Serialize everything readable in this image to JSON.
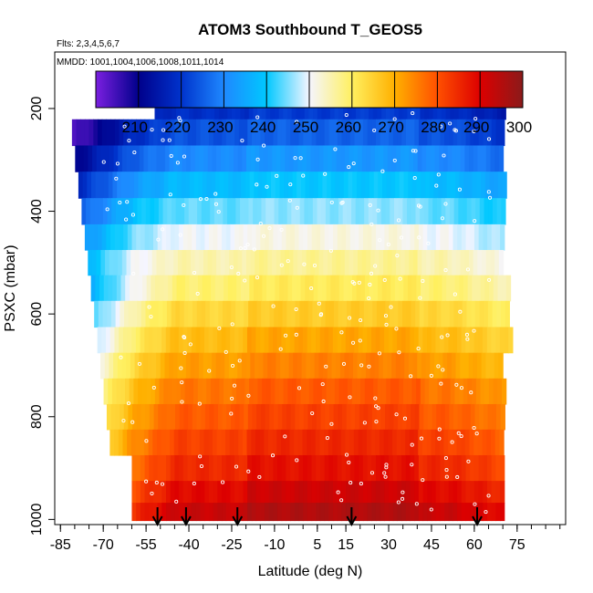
{
  "chart_data": {
    "type": "heatmap",
    "title": "ATOM3 Southbound T_GEOS5",
    "flights_note": "Flts: 2,3,4,5,6,7",
    "dates_note": "MMDD: 1001,1004,1006,1008,1011,1014",
    "xlabel": "Latitude (deg N)",
    "ylabel": "PSXC (mbar)",
    "xlim": [
      -87,
      92
    ],
    "ylim": [
      1010,
      90
    ],
    "x_ticks": [
      -85,
      -70,
      -55,
      -40,
      -25,
      -10,
      5,
      15,
      30,
      45,
      60,
      75
    ],
    "y_ticks": [
      200,
      400,
      600,
      800,
      1000
    ],
    "colorbar": {
      "range": [
        200,
        300
      ],
      "ticks": [
        210,
        220,
        230,
        240,
        250,
        260,
        270,
        280,
        290,
        300
      ],
      "colors": [
        "#7B1FE0",
        "#00008B",
        "#0033CC",
        "#1E88FF",
        "#00C8FF",
        "#F5F5FF",
        "#FFF060",
        "#FFB000",
        "#FF5000",
        "#DD0000",
        "#8B1A1A"
      ]
    },
    "arrow_latitudes": [
      -51,
      -41,
      -23,
      17,
      61
    ],
    "pressure_levels_mbar": [
      195,
      247,
      297,
      349,
      400,
      451,
      500,
      549,
      600,
      651,
      700,
      751,
      800,
      850,
      900,
      950,
      985
    ],
    "latitude_extent": {
      "start": -82,
      "end": 70
    },
    "temperature_profile_K": [
      {
        "p": 195,
        "t": 219
      },
      {
        "p": 250,
        "t": 224
      },
      {
        "p": 300,
        "t": 231
      },
      {
        "p": 350,
        "t": 238
      },
      {
        "p": 400,
        "t": 244
      },
      {
        "p": 450,
        "t": 250
      },
      {
        "p": 500,
        "t": 255
      },
      {
        "p": 550,
        "t": 259
      },
      {
        "p": 600,
        "t": 264
      },
      {
        "p": 650,
        "t": 268
      },
      {
        "p": 700,
        "t": 272
      },
      {
        "p": 750,
        "t": 276
      },
      {
        "p": 800,
        "t": 279
      },
      {
        "p": 850,
        "t": 282
      },
      {
        "p": 900,
        "t": 285
      },
      {
        "p": 950,
        "t": 289
      },
      {
        "p": 1000,
        "t": 294
      }
    ]
  }
}
